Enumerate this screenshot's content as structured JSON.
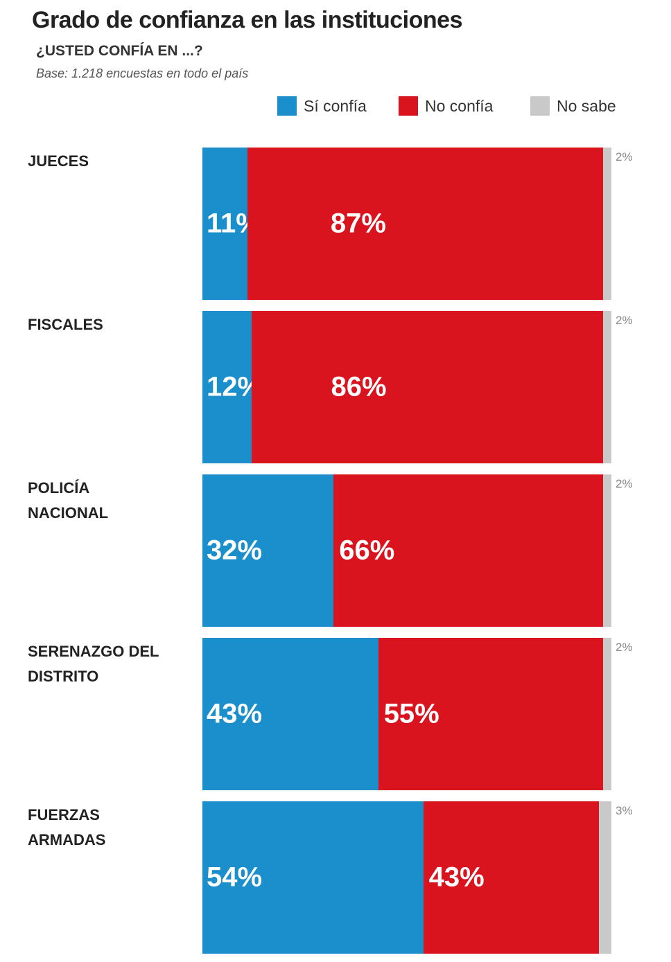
{
  "chart_data": {
    "type": "stacked-bar-horizontal",
    "title": "Grado de confianza en las instituciones",
    "subtitle": "¿USTED CONFÍA EN ...?",
    "note": "Base: 1.218 encuestas en todo el país",
    "categories": [
      "JUECES",
      "FISCALES",
      "POLICÍA NACIONAL",
      "SERENAZGO DEL DISTRITO",
      "FUERZAS ARMADAS"
    ],
    "series": [
      {
        "name": "Sí confía",
        "color": "#1a8fcb",
        "values": [
          11,
          12,
          32,
          43,
          54
        ],
        "value_labels": [
          "11%",
          "12%",
          "32%",
          "43%",
          "54%"
        ]
      },
      {
        "name": "No confía",
        "color": "#d9141e",
        "values": [
          87,
          86,
          66,
          55,
          43
        ],
        "value_labels": [
          "87%",
          "86%",
          "66%",
          "55%",
          "43%"
        ]
      },
      {
        "name": "No sabe",
        "color": "#c9c9c9",
        "values": [
          2,
          2,
          2,
          2,
          3
        ],
        "value_labels": [
          "2%",
          "2%",
          "2%",
          "2%",
          "3%"
        ]
      }
    ],
    "xlim": [
      0,
      100
    ]
  }
}
